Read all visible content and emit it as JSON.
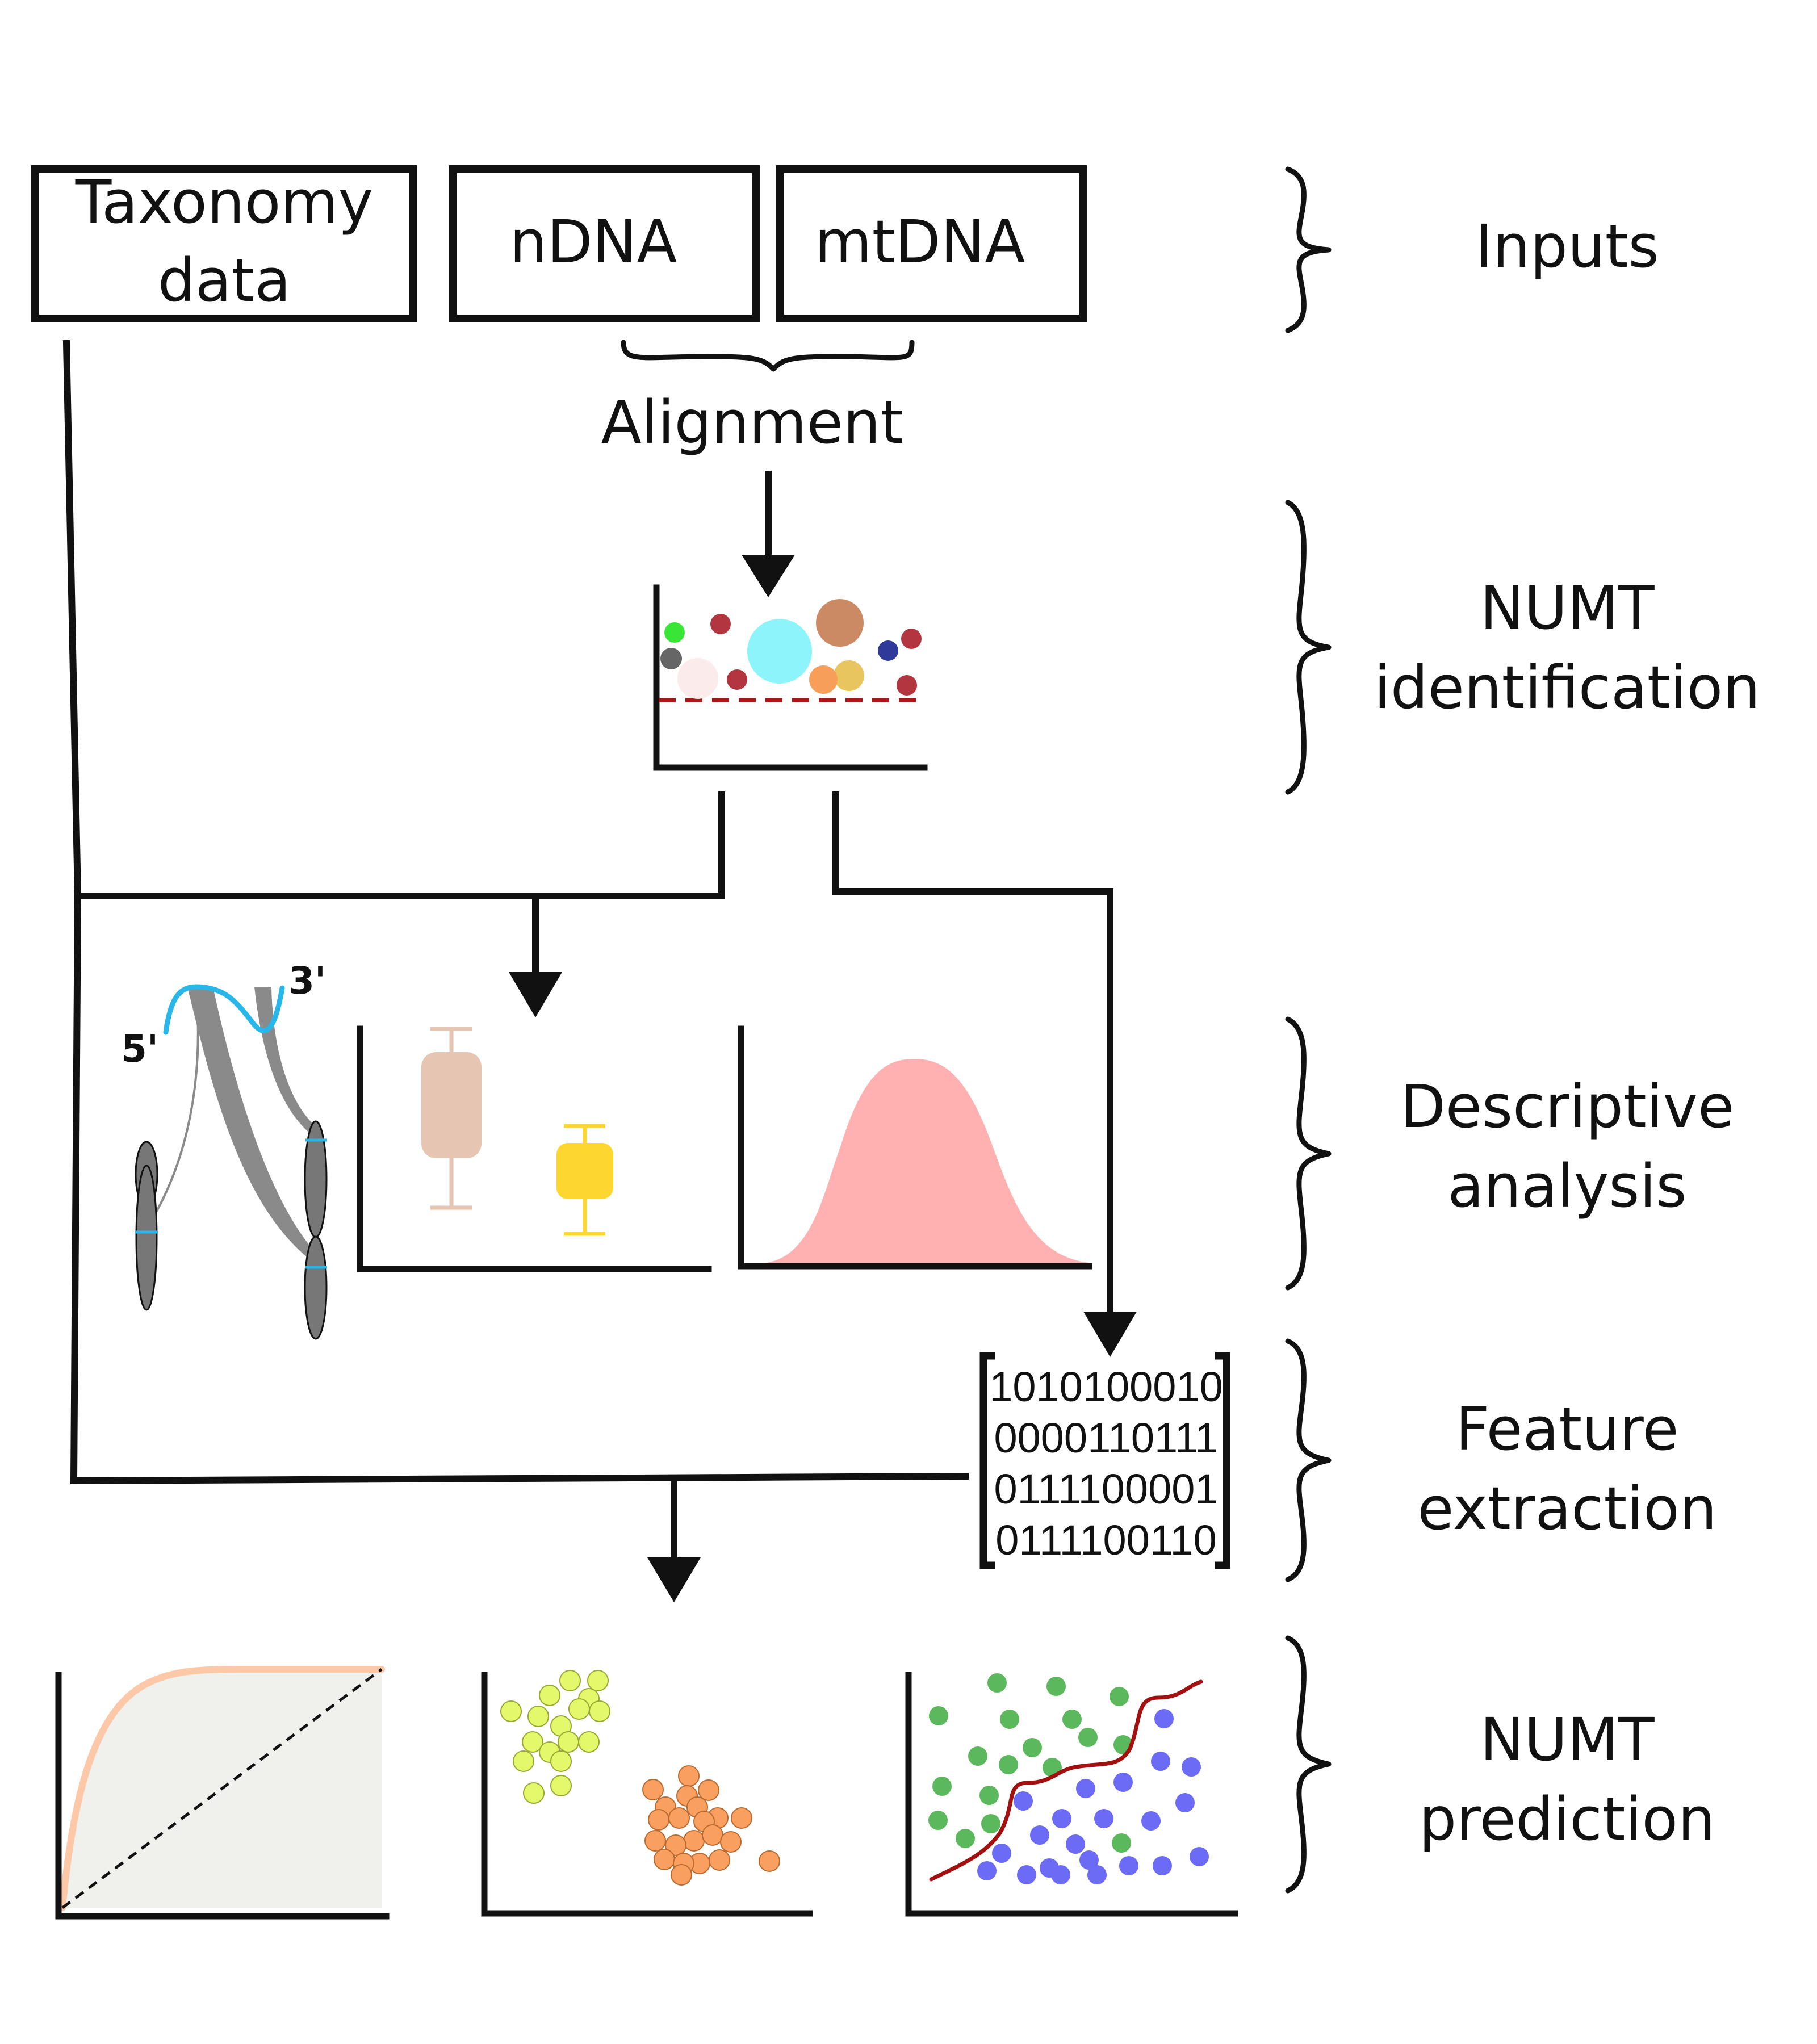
{
  "inputs": {
    "taxonomy_line1": "Taxonomy",
    "taxonomy_line2": "data",
    "ndna": "nDNA",
    "mtdna": "mtDNA",
    "alignment": "Alignment"
  },
  "stages": {
    "inputs": [
      "Inputs"
    ],
    "identification": [
      "NUMT",
      "identification"
    ],
    "descriptive": [
      "Descriptive",
      "analysis"
    ],
    "feature": [
      "Feature",
      "extraction"
    ],
    "prediction": [
      "NUMT",
      "prediction"
    ]
  },
  "chromosome_labels": {
    "five_prime": "5'",
    "three_prime": "3'"
  },
  "feature_matrix": [
    "1010100010",
    "0000110111",
    "0111100001",
    "0111100110"
  ],
  "colors": {
    "cyan": "#29b6e8",
    "threshold": "#b01515",
    "box1": "#e6c6b3",
    "box2": "#fdd72f",
    "density": "#ffb1b1",
    "roc_curve": "#fcc8a8",
    "roc_fill": "#f0f0ec",
    "cluster_green": "#e3f86a",
    "cluster_orange": "#f9a060",
    "class_green": "#5cb85c",
    "class_blue": "#6b6bf6",
    "boundary": "#a31010"
  }
}
